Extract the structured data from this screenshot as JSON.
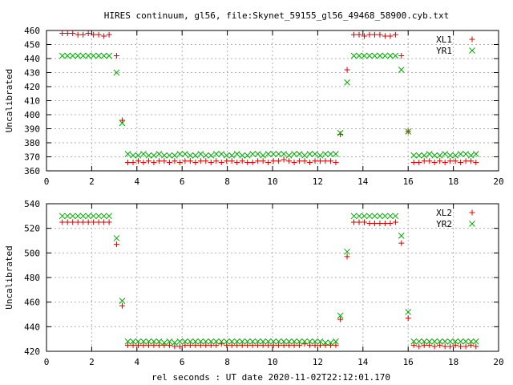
{
  "title": "HIRES continuum, gl56, file:Skynet_59155_gl56_49468_58900.cyb.txt",
  "xlabel": "rel seconds : UT date 2020-11-02T22:12:01.170",
  "colors": {
    "xl": "#dd0000",
    "yr": "#00aa00"
  },
  "chart_data": [
    {
      "type": "scatter",
      "ylabel": "Uncalibrated",
      "xlim": [
        0,
        20
      ],
      "ylim": [
        360,
        460
      ],
      "xticks": [
        0,
        2,
        4,
        6,
        8,
        10,
        12,
        14,
        16,
        18,
        20
      ],
      "yticks": [
        360,
        370,
        380,
        390,
        400,
        410,
        420,
        430,
        440,
        450,
        460
      ],
      "grid": true,
      "legend": "top-right",
      "x": [
        0.7,
        0.93,
        1.16,
        1.39,
        1.62,
        1.85,
        2.08,
        2.31,
        2.54,
        2.77,
        3.1,
        3.35,
        3.6,
        3.83,
        4.06,
        4.29,
        4.52,
        4.75,
        4.98,
        5.21,
        5.44,
        5.67,
        5.9,
        6.13,
        6.36,
        6.59,
        6.82,
        7.05,
        7.28,
        7.51,
        7.74,
        7.97,
        8.2,
        8.43,
        8.66,
        8.89,
        9.12,
        9.35,
        9.58,
        9.81,
        10.04,
        10.27,
        10.5,
        10.73,
        10.96,
        11.19,
        11.42,
        11.65,
        11.88,
        12.11,
        12.34,
        12.57,
        12.8,
        13.0,
        13.3,
        13.6,
        13.83,
        14.06,
        14.29,
        14.52,
        14.75,
        14.98,
        15.21,
        15.44,
        15.7,
        16.0,
        16.25,
        16.48,
        16.71,
        16.94,
        17.17,
        17.4,
        17.63,
        17.86,
        18.09,
        18.32,
        18.55,
        18.78,
        19.0
      ],
      "series": [
        {
          "name": "XL1",
          "marker": "plus",
          "values": [
            458,
            458,
            458,
            457,
            457,
            458,
            457,
            457,
            456,
            457,
            442,
            396,
            366,
            366,
            367,
            366,
            367,
            366,
            367,
            367,
            366,
            367,
            366,
            367,
            367,
            366,
            367,
            367,
            366,
            367,
            366,
            367,
            367,
            366,
            367,
            366,
            366,
            367,
            367,
            366,
            367,
            367,
            368,
            367,
            366,
            367,
            367,
            366,
            367,
            367,
            367,
            367,
            366,
            386,
            432,
            457,
            457,
            456,
            457,
            457,
            457,
            456,
            456,
            457,
            442,
            388,
            366,
            366,
            367,
            367,
            366,
            367,
            366,
            367,
            367,
            366,
            367,
            367,
            366
          ]
        },
        {
          "name": "YR1",
          "marker": "cross",
          "values": [
            442,
            442,
            442,
            442,
            442,
            442,
            442,
            442,
            442,
            442,
            430,
            394,
            372,
            371,
            371,
            372,
            371,
            371,
            372,
            371,
            371,
            371,
            372,
            372,
            371,
            371,
            372,
            371,
            371,
            372,
            372,
            371,
            371,
            372,
            371,
            371,
            372,
            372,
            371,
            372,
            372,
            372,
            372,
            371,
            372,
            372,
            371,
            372,
            372,
            371,
            372,
            372,
            372,
            387,
            423,
            442,
            442,
            442,
            442,
            442,
            442,
            442,
            442,
            442,
            432,
            388,
            371,
            371,
            371,
            372,
            371,
            371,
            372,
            371,
            371,
            372,
            372,
            371,
            372
          ]
        }
      ]
    },
    {
      "type": "scatter",
      "ylabel": "Uncalibrated",
      "xlim": [
        0,
        20
      ],
      "ylim": [
        420,
        540
      ],
      "xticks": [
        0,
        2,
        4,
        6,
        8,
        10,
        12,
        14,
        16,
        18,
        20
      ],
      "yticks": [
        420,
        440,
        460,
        480,
        500,
        520,
        540
      ],
      "grid": true,
      "legend": "top-right",
      "x": [
        0.7,
        0.93,
        1.16,
        1.39,
        1.62,
        1.85,
        2.08,
        2.31,
        2.54,
        2.77,
        3.1,
        3.35,
        3.6,
        3.83,
        4.06,
        4.29,
        4.52,
        4.75,
        4.98,
        5.21,
        5.44,
        5.67,
        5.9,
        6.13,
        6.36,
        6.59,
        6.82,
        7.05,
        7.28,
        7.51,
        7.74,
        7.97,
        8.2,
        8.43,
        8.66,
        8.89,
        9.12,
        9.35,
        9.58,
        9.81,
        10.04,
        10.27,
        10.5,
        10.73,
        10.96,
        11.19,
        11.42,
        11.65,
        11.88,
        12.11,
        12.34,
        12.57,
        12.8,
        13.0,
        13.3,
        13.6,
        13.83,
        14.06,
        14.29,
        14.52,
        14.75,
        14.98,
        15.21,
        15.44,
        15.7,
        16.0,
        16.25,
        16.48,
        16.71,
        16.94,
        17.17,
        17.4,
        17.63,
        17.86,
        18.09,
        18.32,
        18.55,
        18.78,
        19.0
      ],
      "series": [
        {
          "name": "XL2",
          "marker": "plus",
          "values": [
            525,
            525,
            525,
            525,
            525,
            525,
            525,
            525,
            525,
            525,
            507,
            457,
            425,
            425,
            425,
            425,
            425,
            425,
            425,
            425,
            425,
            424,
            424,
            425,
            425,
            425,
            425,
            425,
            425,
            425,
            426,
            425,
            425,
            425,
            425,
            425,
            425,
            425,
            425,
            425,
            425,
            425,
            425,
            425,
            425,
            425,
            426,
            425,
            425,
            425,
            425,
            425,
            425,
            446,
            497,
            525,
            525,
            525,
            524,
            524,
            524,
            524,
            524,
            525,
            508,
            447,
            425,
            424,
            425,
            425,
            424,
            425,
            424,
            424,
            425,
            424,
            424,
            425,
            424
          ]
        },
        {
          "name": "YR2",
          "marker": "cross",
          "values": [
            530,
            530,
            530,
            530,
            530,
            530,
            530,
            530,
            530,
            530,
            512,
            461,
            428,
            428,
            428,
            428,
            428,
            428,
            428,
            427,
            428,
            427,
            428,
            428,
            428,
            428,
            428,
            428,
            428,
            428,
            428,
            428,
            428,
            428,
            428,
            428,
            428,
            428,
            428,
            428,
            428,
            428,
            428,
            428,
            428,
            428,
            428,
            428,
            428,
            428,
            427,
            427,
            428,
            449,
            501,
            530,
            530,
            530,
            530,
            530,
            530,
            530,
            530,
            530,
            514,
            452,
            428,
            428,
            428,
            428,
            428,
            428,
            428,
            428,
            428,
            428,
            428,
            428,
            428
          ]
        }
      ]
    }
  ]
}
